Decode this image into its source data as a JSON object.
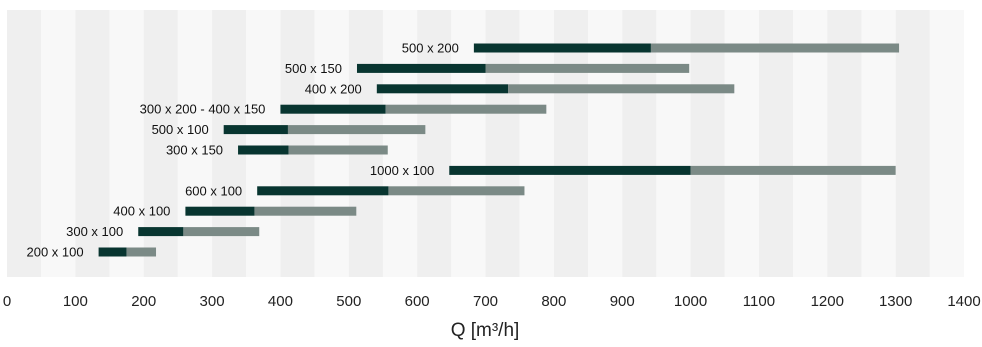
{
  "chart_data": {
    "type": "bar",
    "subtype": "stacked-horizontal-range",
    "xlabel": "Q [m³/h]",
    "xlim": [
      0,
      1400
    ],
    "xticks": [
      0,
      100,
      200,
      300,
      400,
      500,
      600,
      700,
      800,
      900,
      1000,
      1100,
      1200,
      1300,
      1400
    ],
    "grid": "alternating vertical bands every 50",
    "colors": {
      "dark": "#083530",
      "light": "#7b8a86",
      "band_dark": "#efefef",
      "band_light": "#f8f8f8"
    },
    "series": [
      {
        "label": "500 x 200",
        "start": 683,
        "mid": 942,
        "end": 1305
      },
      {
        "label": "500 x 150",
        "start": 512,
        "mid": 700,
        "end": 998
      },
      {
        "label": "400 x 200",
        "start": 541,
        "mid": 733,
        "end": 1064
      },
      {
        "label": "300 x 200 - 400 x 150",
        "start": 400,
        "mid": 554,
        "end": 789
      },
      {
        "label": "500 x 100",
        "start": 317,
        "mid": 411,
        "end": 612
      },
      {
        "label": "300 x 150",
        "start": 338,
        "mid": 412,
        "end": 557
      },
      {
        "label": "1000 x 100",
        "start": 647,
        "mid": 1000,
        "end": 1300
      },
      {
        "label": "600 x 100",
        "start": 366,
        "mid": 558,
        "end": 757
      },
      {
        "label": "400 x 100",
        "start": 261,
        "mid": 362,
        "end": 511
      },
      {
        "label": "300 x 100",
        "start": 192,
        "mid": 258,
        "end": 369
      },
      {
        "label": "200 x 100",
        "start": 134,
        "mid": 175,
        "end": 218
      }
    ]
  }
}
